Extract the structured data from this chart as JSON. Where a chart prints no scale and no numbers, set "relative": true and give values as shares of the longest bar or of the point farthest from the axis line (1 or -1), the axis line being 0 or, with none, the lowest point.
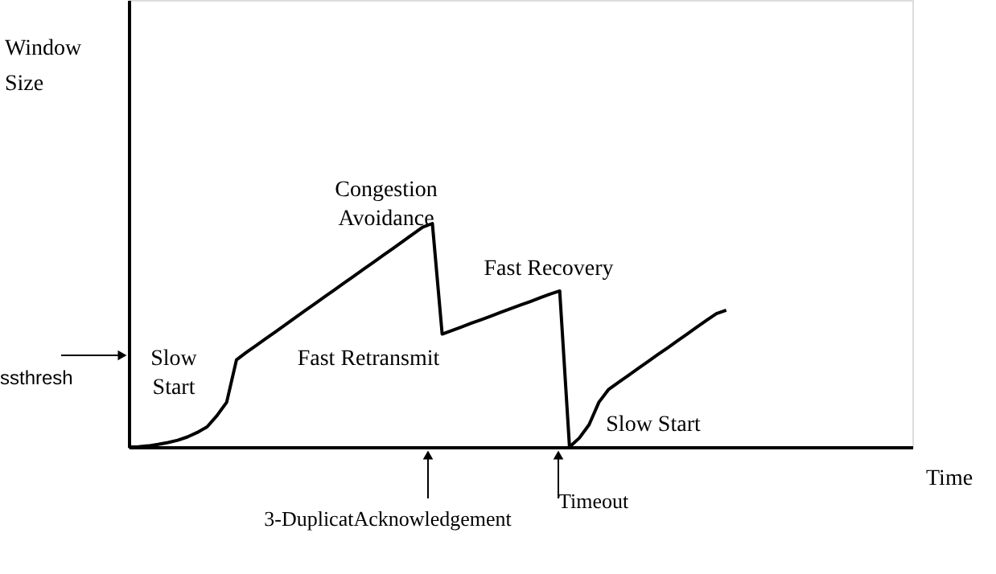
{
  "chart_data": {
    "type": "line",
    "relative": true,
    "xlabel": "Time",
    "line_style": "solid",
    "categories": [
      null,
      null,
      null,
      null,
      null,
      null,
      null,
      null,
      null,
      null,
      null,
      null,
      null,
      null,
      null,
      null,
      null,
      null,
      null,
      null,
      null,
      null,
      null,
      null,
      null,
      null,
      null,
      null,
      null,
      null,
      null,
      null,
      null,
      null,
      null,
      null,
      null,
      null,
      null,
      null,
      null,
      null,
      null,
      null,
      null,
      null,
      null,
      null,
      null,
      null,
      null,
      null,
      null,
      null,
      null,
      null,
      null,
      null,
      null,
      null,
      null,
      null,
      null,
      null,
      null,
      null,
      null,
      null,
      null,
      null,
      null,
      null,
      null,
      null,
      null,
      null,
      null,
      null,
      null,
      null,
      null
    ],
    "series": [
      {
        "color": "#000000",
        "values": [
          0,
          0.001,
          0.005,
          0.012,
          0.02,
          0.03,
          0.045,
          0.065,
          0.09,
          0.14,
          0.2,
          0.39,
          0.423,
          0.454,
          0.485,
          0.516,
          0.547,
          0.579,
          0.61,
          0.641,
          0.672,
          0.703,
          0.734,
          0.765,
          0.796,
          0.827,
          0.858,
          0.889,
          0.92,
          0.952,
          0.983,
          1,
          0.505,
          0.521,
          0.537,
          0.554,
          0.57,
          0.586,
          0.603,
          0.619,
          0.635,
          0.651,
          0.668,
          0.684,
          0.698,
          0,
          0.04,
          0.1,
          0.2,
          0.258,
          0.289,
          0.32,
          0.351,
          0.382,
          0.413,
          0.443,
          0.474,
          0.505,
          0.536,
          0.567,
          0.597,
          0.612,
          null,
          null,
          null,
          null,
          null,
          null,
          null,
          null,
          null,
          null,
          null,
          null,
          null,
          null,
          null,
          null,
          null,
          null,
          null
        ]
      }
    ],
    "annotations": [
      "Congestion Avoidance",
      "Fast Recovery",
      "Fast Retransmit",
      "Slow Start",
      "Slow Start",
      "3-DuplicatAcknowledgement",
      "Timeout",
      "ssthresh",
      "Window Size"
    ]
  }
}
